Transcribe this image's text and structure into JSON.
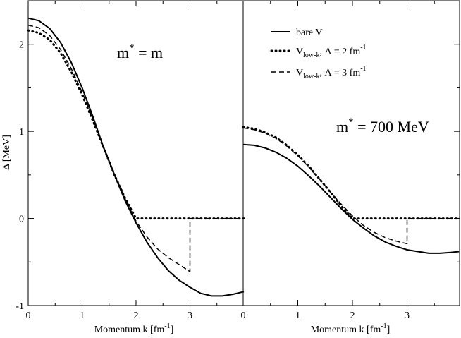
{
  "chart_data": [
    {
      "type": "line",
      "panel": "left",
      "annotation": {
        "main": "m",
        "sup": "*",
        "rest": " = m"
      },
      "xlabel": {
        "main": "Momentum k [fm",
        "sup": "-1",
        "tail": "]"
      },
      "ylabel": "Δ [MeV]",
      "xlim": [
        0,
        4
      ],
      "ylim": [
        -1,
        2.5
      ],
      "x_ticks": [
        "0",
        "1",
        "2",
        "3"
      ],
      "y_ticks": [
        "-1",
        "0",
        "1",
        "2"
      ],
      "series": [
        {
          "name": "bare V",
          "style": "solid",
          "points": [
            [
              0,
              2.3
            ],
            [
              0.2,
              2.27
            ],
            [
              0.4,
              2.18
            ],
            [
              0.6,
              2.02
            ],
            [
              0.8,
              1.79
            ],
            [
              1.0,
              1.5
            ],
            [
              1.2,
              1.17
            ],
            [
              1.4,
              0.81
            ],
            [
              1.6,
              0.5
            ],
            [
              1.8,
              0.2
            ],
            [
              2.0,
              -0.05
            ],
            [
              2.2,
              -0.27
            ],
            [
              2.4,
              -0.45
            ],
            [
              2.6,
              -0.6
            ],
            [
              2.8,
              -0.71
            ],
            [
              3.0,
              -0.79
            ],
            [
              3.2,
              -0.86
            ],
            [
              3.4,
              -0.89
            ],
            [
              3.6,
              -0.89
            ],
            [
              3.8,
              -0.87
            ],
            [
              4.0,
              -0.84
            ]
          ]
        },
        {
          "name": "V_low-k, Λ = 2 fm⁻¹",
          "style": "dotted",
          "points": [
            [
              0,
              2.16
            ],
            [
              0.2,
              2.13
            ],
            [
              0.4,
              2.05
            ],
            [
              0.6,
              1.9
            ],
            [
              0.8,
              1.68
            ],
            [
              1.0,
              1.42
            ],
            [
              1.2,
              1.12
            ],
            [
              1.4,
              0.81
            ],
            [
              1.6,
              0.5
            ],
            [
              1.8,
              0.23
            ],
            [
              2.0,
              0.0
            ],
            [
              2.5,
              0.0
            ],
            [
              3.0,
              0.0
            ],
            [
              3.5,
              0.0
            ],
            [
              4.0,
              0.0
            ]
          ]
        },
        {
          "name": "V_low-k, Λ = 3 fm⁻¹",
          "style": "dashed",
          "points": [
            [
              0,
              2.22
            ],
            [
              0.2,
              2.19
            ],
            [
              0.4,
              2.1
            ],
            [
              0.6,
              1.94
            ],
            [
              0.8,
              1.72
            ],
            [
              1.0,
              1.45
            ],
            [
              1.2,
              1.14
            ],
            [
              1.4,
              0.82
            ],
            [
              1.6,
              0.51
            ],
            [
              1.8,
              0.22
            ],
            [
              2.0,
              -0.03
            ],
            [
              2.2,
              -0.21
            ],
            [
              2.4,
              -0.35
            ],
            [
              2.6,
              -0.45
            ],
            [
              2.8,
              -0.53
            ],
            [
              3.0,
              -0.61
            ],
            [
              3.0,
              0.0
            ],
            [
              3.5,
              0.0
            ],
            [
              4.0,
              0.0
            ]
          ]
        }
      ]
    },
    {
      "type": "line",
      "panel": "right",
      "annotation": {
        "main": "m",
        "sup": "*",
        "rest": " = 700 MeV"
      },
      "xlabel": {
        "main": "Momentum k [fm",
        "sup": "-1",
        "tail": "]"
      },
      "xlim": [
        0,
        4
      ],
      "ylim": [
        -1,
        2.5
      ],
      "x_ticks": [
        "0",
        "1",
        "2",
        "3"
      ],
      "series": [
        {
          "name": "bare V",
          "style": "solid",
          "points": [
            [
              0,
              0.85
            ],
            [
              0.2,
              0.84
            ],
            [
              0.4,
              0.81
            ],
            [
              0.6,
              0.76
            ],
            [
              0.8,
              0.69
            ],
            [
              1.0,
              0.6
            ],
            [
              1.2,
              0.49
            ],
            [
              1.4,
              0.37
            ],
            [
              1.6,
              0.24
            ],
            [
              1.8,
              0.11
            ],
            [
              2.0,
              -0.01
            ],
            [
              2.2,
              -0.11
            ],
            [
              2.4,
              -0.2
            ],
            [
              2.6,
              -0.27
            ],
            [
              2.8,
              -0.32
            ],
            [
              3.0,
              -0.36
            ],
            [
              3.2,
              -0.38
            ],
            [
              3.4,
              -0.4
            ],
            [
              3.6,
              -0.4
            ],
            [
              3.8,
              -0.39
            ],
            [
              3.95,
              -0.38
            ]
          ]
        },
        {
          "name": "V_low-k, Λ = 2 fm⁻¹",
          "style": "dotted",
          "points": [
            [
              0,
              1.05
            ],
            [
              0.2,
              1.03
            ],
            [
              0.4,
              0.99
            ],
            [
              0.6,
              0.93
            ],
            [
              0.8,
              0.84
            ],
            [
              1.0,
              0.73
            ],
            [
              1.2,
              0.6
            ],
            [
              1.4,
              0.45
            ],
            [
              1.6,
              0.3
            ],
            [
              1.8,
              0.14
            ],
            [
              2.0,
              0.0
            ],
            [
              2.5,
              0.0
            ],
            [
              3.0,
              0.0
            ],
            [
              3.5,
              0.0
            ],
            [
              3.95,
              0.0
            ]
          ]
        },
        {
          "name": "V_low-k, Λ = 3 fm⁻¹",
          "style": "dashed",
          "points": [
            [
              0,
              1.04
            ],
            [
              0.2,
              1.02
            ],
            [
              0.4,
              0.98
            ],
            [
              0.6,
              0.92
            ],
            [
              0.8,
              0.83
            ],
            [
              1.0,
              0.72
            ],
            [
              1.2,
              0.59
            ],
            [
              1.4,
              0.45
            ],
            [
              1.6,
              0.3
            ],
            [
              1.8,
              0.16
            ],
            [
              2.0,
              0.03
            ],
            [
              2.2,
              -0.08
            ],
            [
              2.4,
              -0.16
            ],
            [
              2.6,
              -0.22
            ],
            [
              2.8,
              -0.26
            ],
            [
              3.0,
              -0.29
            ],
            [
              3.0,
              0.0
            ],
            [
              3.5,
              0.0
            ],
            [
              3.95,
              0.0
            ]
          ]
        }
      ]
    }
  ],
  "legend": {
    "placement": "top-right",
    "entries": [
      {
        "style": "solid",
        "text": "bare V"
      },
      {
        "style": "dotted",
        "V": "V",
        "sub": "low-k",
        "mid": ", Λ = 2 fm",
        "sup": "-1"
      },
      {
        "style": "dashed",
        "V": "V",
        "sub": "low-k",
        "mid": ", Λ = 3 fm",
        "sup": "-1"
      }
    ]
  }
}
